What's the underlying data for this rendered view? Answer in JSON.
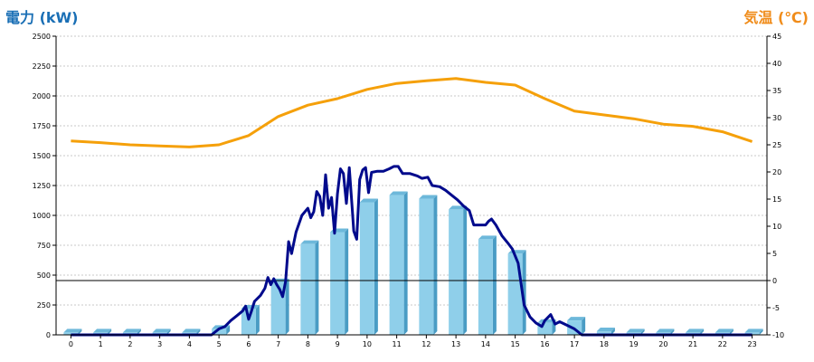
{
  "colors": {
    "power_axis_title": "#1a6fb5",
    "temp_axis_title": "#f08c1a",
    "bar_front": "#8fcfea",
    "bar_side": "#4a9cc4",
    "bar_top": "#6db8da",
    "power_line": "#000a8c",
    "temp_line": "#f5a00a",
    "grid": "#c8c8c8"
  },
  "chart_data": {
    "type": "bar+line",
    "left_axis_title": "電力 (kW)",
    "right_axis_title": "気温 (℃)",
    "left_range": [
      0,
      2500
    ],
    "left_ticks": [
      "0",
      "250",
      "500",
      "750",
      "1000",
      "1250",
      "1500",
      "1750",
      "2000",
      "2250",
      "2500"
    ],
    "right_range": [
      -10,
      45
    ],
    "right_ticks": [
      "-10",
      "-5",
      "0",
      "5",
      "10",
      "15",
      "20",
      "25",
      "30",
      "35",
      "40",
      "45"
    ],
    "categories": [
      "0",
      "1",
      "2",
      "3",
      "4",
      "5",
      "6",
      "7",
      "8",
      "9",
      "10",
      "11",
      "12",
      "13",
      "14",
      "15",
      "16",
      "17",
      "18",
      "19",
      "20",
      "21",
      "22",
      "23"
    ],
    "grid": true,
    "series": [
      {
        "kind": "bar",
        "axis": "left",
        "values": [
          20,
          20,
          20,
          20,
          20,
          50,
          220,
          440,
          760,
          860,
          1110,
          1170,
          1140,
          1050,
          800,
          680,
          100,
          120,
          30,
          20,
          20,
          20,
          20,
          20
        ]
      },
      {
        "kind": "line",
        "axis": "left",
        "points": [
          [
            0,
            0
          ],
          [
            1,
            0
          ],
          [
            2,
            0
          ],
          [
            3,
            0
          ],
          [
            4,
            0
          ],
          [
            4.75,
            0
          ],
          [
            5.0,
            50
          ],
          [
            5.2,
            70
          ],
          [
            5.4,
            120
          ],
          [
            5.6,
            160
          ],
          [
            5.8,
            200
          ],
          [
            5.9,
            240
          ],
          [
            6.0,
            130
          ],
          [
            6.1,
            200
          ],
          [
            6.2,
            280
          ],
          [
            6.4,
            330
          ],
          [
            6.55,
            390
          ],
          [
            6.65,
            480
          ],
          [
            6.75,
            420
          ],
          [
            6.85,
            470
          ],
          [
            6.95,
            420
          ],
          [
            7.05,
            380
          ],
          [
            7.15,
            320
          ],
          [
            7.25,
            450
          ],
          [
            7.35,
            780
          ],
          [
            7.45,
            680
          ],
          [
            7.6,
            860
          ],
          [
            7.8,
            1000
          ],
          [
            8.0,
            1060
          ],
          [
            8.1,
            980
          ],
          [
            8.2,
            1030
          ],
          [
            8.3,
            1200
          ],
          [
            8.4,
            1160
          ],
          [
            8.5,
            1000
          ],
          [
            8.6,
            1340
          ],
          [
            8.7,
            1060
          ],
          [
            8.8,
            1150
          ],
          [
            8.9,
            850
          ],
          [
            9.0,
            1180
          ],
          [
            9.1,
            1390
          ],
          [
            9.2,
            1350
          ],
          [
            9.3,
            1100
          ],
          [
            9.4,
            1400
          ],
          [
            9.5,
            1050
          ],
          [
            9.55,
            870
          ],
          [
            9.65,
            800
          ],
          [
            9.75,
            1300
          ],
          [
            9.85,
            1380
          ],
          [
            9.95,
            1400
          ],
          [
            10.05,
            1190
          ],
          [
            10.15,
            1360
          ],
          [
            10.35,
            1370
          ],
          [
            10.55,
            1370
          ],
          [
            10.75,
            1390
          ],
          [
            10.9,
            1410
          ],
          [
            11.05,
            1410
          ],
          [
            11.2,
            1350
          ],
          [
            11.45,
            1350
          ],
          [
            11.7,
            1330
          ],
          [
            11.85,
            1310
          ],
          [
            12.05,
            1320
          ],
          [
            12.2,
            1250
          ],
          [
            12.45,
            1240
          ],
          [
            12.65,
            1210
          ],
          [
            12.85,
            1170
          ],
          [
            13.05,
            1130
          ],
          [
            13.25,
            1080
          ],
          [
            13.45,
            1040
          ],
          [
            13.6,
            920
          ],
          [
            13.8,
            920
          ],
          [
            14.0,
            920
          ],
          [
            14.1,
            950
          ],
          [
            14.2,
            970
          ],
          [
            14.35,
            920
          ],
          [
            14.55,
            830
          ],
          [
            14.75,
            770
          ],
          [
            14.9,
            720
          ],
          [
            15.1,
            600
          ],
          [
            15.3,
            250
          ],
          [
            15.5,
            150
          ],
          [
            15.7,
            100
          ],
          [
            15.9,
            70
          ],
          [
            16.0,
            120
          ],
          [
            16.2,
            170
          ],
          [
            16.35,
            90
          ],
          [
            16.5,
            110
          ],
          [
            16.75,
            80
          ],
          [
            17.0,
            50
          ],
          [
            17.25,
            0
          ],
          [
            17.5,
            0
          ],
          [
            18,
            0
          ],
          [
            19,
            0
          ],
          [
            20,
            0
          ],
          [
            21,
            0
          ],
          [
            22,
            0
          ],
          [
            23,
            0
          ]
        ]
      },
      {
        "kind": "line",
        "axis": "right",
        "points": [
          [
            0,
            25.7
          ],
          [
            1,
            25.4
          ],
          [
            2,
            25.0
          ],
          [
            3,
            24.8
          ],
          [
            4,
            24.6
          ],
          [
            5,
            25.0
          ],
          [
            6,
            26.7
          ],
          [
            7,
            30.2
          ],
          [
            8,
            32.3
          ],
          [
            9,
            33.5
          ],
          [
            10,
            35.2
          ],
          [
            11,
            36.3
          ],
          [
            12,
            36.8
          ],
          [
            13,
            37.2
          ],
          [
            14,
            36.5
          ],
          [
            15,
            36.0
          ],
          [
            16,
            33.5
          ],
          [
            17,
            31.2
          ],
          [
            18,
            30.5
          ],
          [
            19,
            29.8
          ],
          [
            20,
            28.8
          ],
          [
            21,
            28.4
          ],
          [
            22,
            27.4
          ],
          [
            23,
            25.6
          ]
        ]
      }
    ]
  }
}
